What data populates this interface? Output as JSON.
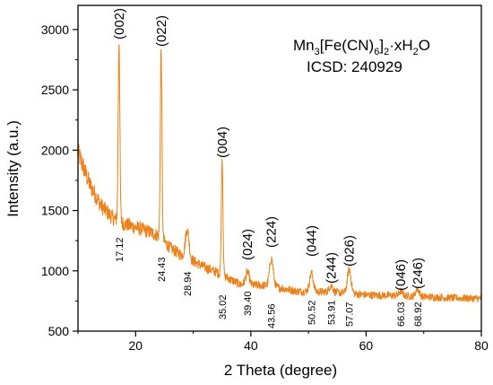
{
  "chart_data": {
    "type": "line",
    "title": "",
    "xlabel": "2 Theta (degree)",
    "ylabel": "Intensity (a.u.)",
    "xlim": [
      10,
      80
    ],
    "ylim": [
      500,
      3200
    ],
    "xticks": [
      20,
      40,
      60,
      80
    ],
    "yticks": [
      500,
      1000,
      1500,
      2000,
      2500,
      3000
    ],
    "series_color": "#f07f13",
    "annotation": {
      "formula": "Mn3[Fe(CN)6]2·xH2O",
      "formula_parts": [
        "Mn",
        "3",
        "[Fe(CN)",
        "6",
        "]",
        "2",
        "·xH",
        "2",
        "O"
      ],
      "icsd": "ICSD: 240929"
    },
    "peaks": [
      {
        "hkl": "(002)",
        "two_theta": 17.12,
        "pos_label": "17.12",
        "intensity": 2920
      },
      {
        "hkl": "(022)",
        "two_theta": 24.43,
        "pos_label": "24.43",
        "intensity": 2840
      },
      {
        "hkl": "",
        "two_theta": 28.94,
        "pos_label": "28.94",
        "intensity": 1340
      },
      {
        "hkl": "(004)",
        "two_theta": 35.02,
        "pos_label": "35.02",
        "intensity": 1930
      },
      {
        "hkl": "(024)",
        "two_theta": 39.4,
        "pos_label": "39.40",
        "intensity": 990
      },
      {
        "hkl": "(224)",
        "two_theta": 43.56,
        "pos_label": "43.56",
        "intensity": 1100
      },
      {
        "hkl": "(044)",
        "two_theta": 50.52,
        "pos_label": "50.52",
        "intensity": 980
      },
      {
        "hkl": "(244)",
        "two_theta": 53.91,
        "pos_label": "53.91",
        "intensity": 880
      },
      {
        "hkl": "(026)",
        "two_theta": 57.07,
        "pos_label": "57.07",
        "intensity": 1010
      },
      {
        "hkl": "(046)",
        "two_theta": 66.03,
        "pos_label": "66.03",
        "intensity": 830
      },
      {
        "hkl": "(246)",
        "two_theta": 68.92,
        "pos_label": "68.92",
        "intensity": 850
      }
    ],
    "baseline_points": [
      [
        10,
        1980
      ],
      [
        12,
        1720
      ],
      [
        14,
        1540
      ],
      [
        16,
        1440
      ],
      [
        18,
        1390
      ],
      [
        20,
        1360
      ],
      [
        22,
        1330
      ],
      [
        24,
        1290
      ],
      [
        26,
        1190
      ],
      [
        28,
        1130
      ],
      [
        30,
        1080
      ],
      [
        32,
        1030
      ],
      [
        34,
        990
      ],
      [
        36,
        940
      ],
      [
        38,
        890
      ],
      [
        40,
        880
      ],
      [
        42,
        880
      ],
      [
        44,
        870
      ],
      [
        46,
        850
      ],
      [
        48,
        830
      ],
      [
        50,
        830
      ],
      [
        55,
        820
      ],
      [
        60,
        800
      ],
      [
        65,
        795
      ],
      [
        70,
        785
      ],
      [
        75,
        775
      ],
      [
        80,
        770
      ]
    ]
  }
}
